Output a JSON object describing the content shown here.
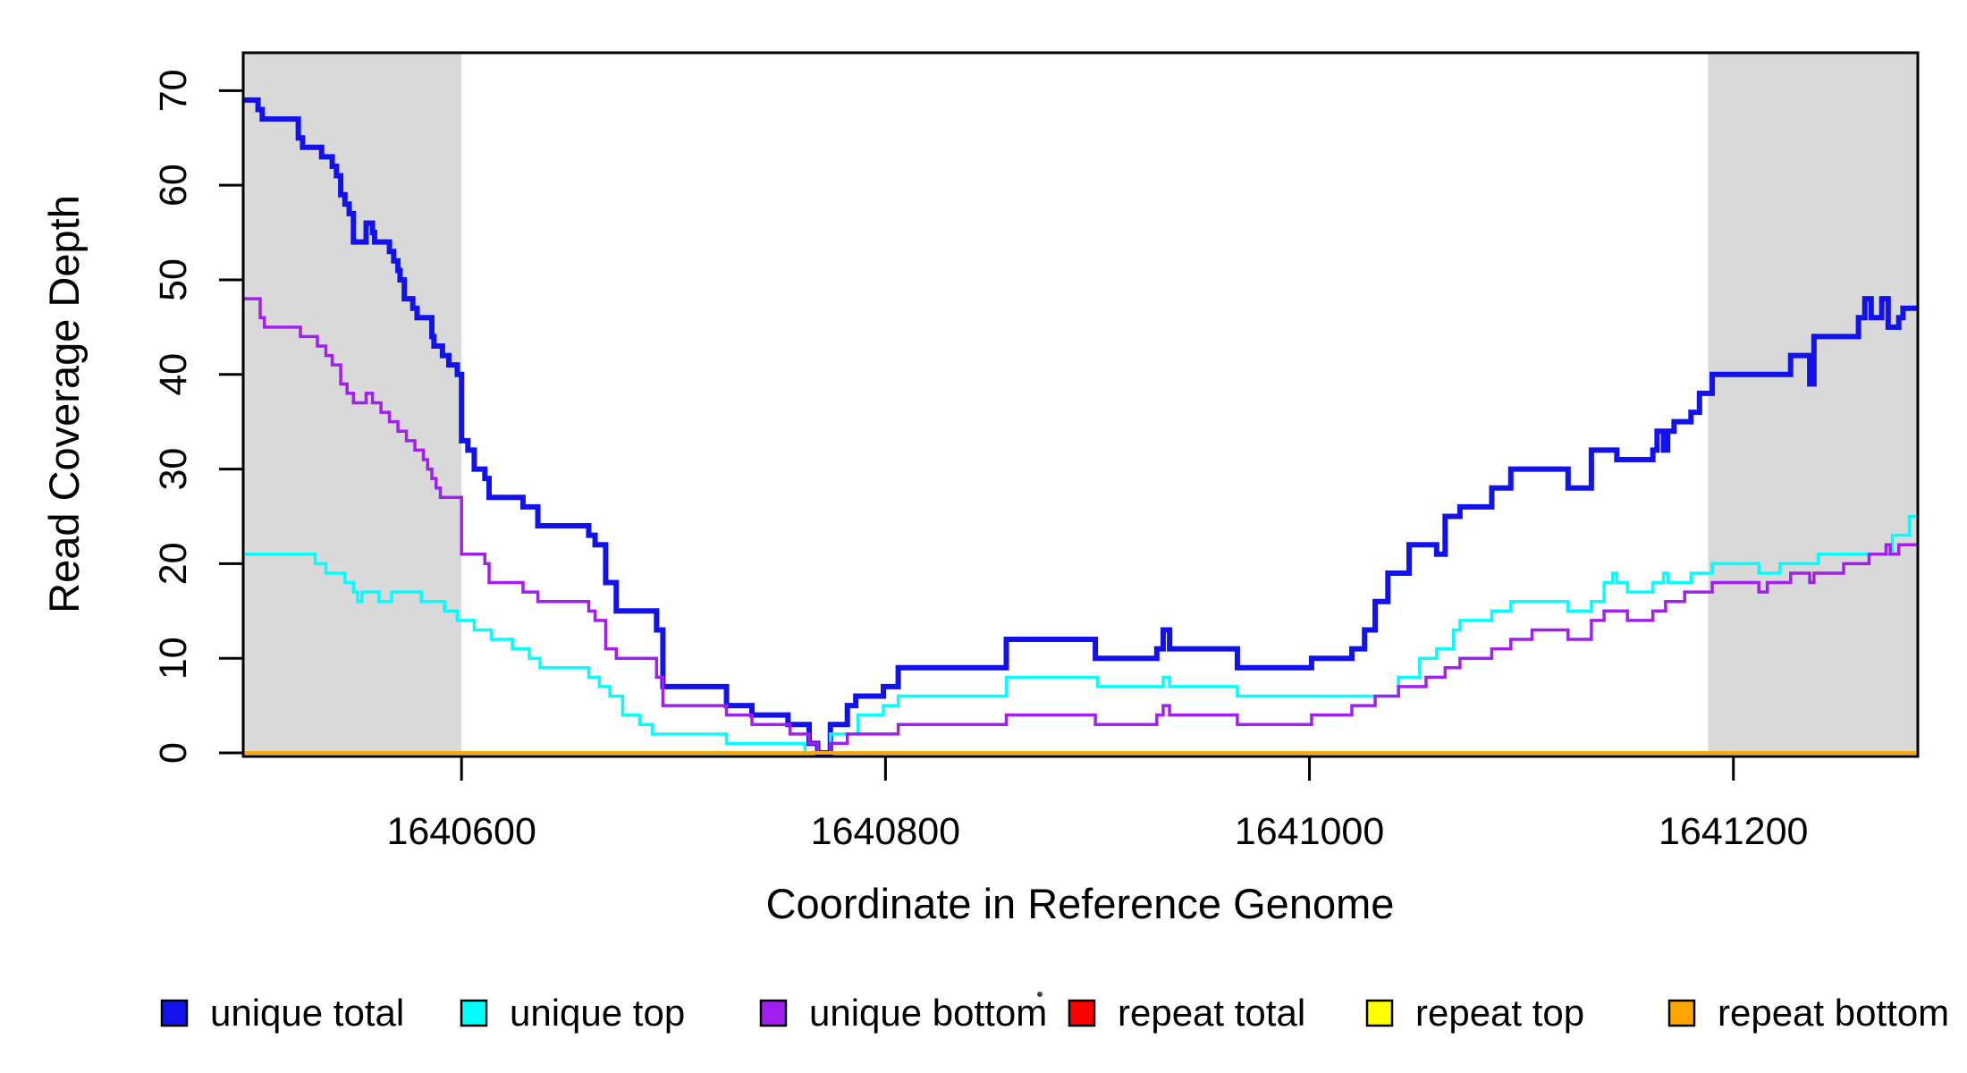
{
  "chart_data": {
    "type": "line",
    "step": true,
    "title": "",
    "xlabel": "Coordinate in Reference Genome",
    "ylabel": "Read Coverage Depth",
    "x_ticks": [
      1640600,
      1640800,
      1641000,
      1641200
    ],
    "y_ticks": [
      0,
      10,
      20,
      30,
      40,
      50,
      60,
      70
    ],
    "xlim": [
      1640497,
      1641287
    ],
    "ylim": [
      0,
      74
    ],
    "grid": false,
    "legend_position": "bottom",
    "shade_color": "#D9D9D9",
    "shaded_regions": [
      {
        "x0": 1640497,
        "x1": 1640600
      },
      {
        "x0": 1641188,
        "x1": 1641287
      }
    ],
    "series": [
      {
        "name": "unique total",
        "color": "#1212EE",
        "width": 6,
        "points": [
          [
            1640497,
            69
          ],
          [
            1640504,
            68
          ],
          [
            1640506,
            67
          ],
          [
            1640523,
            65
          ],
          [
            1640525,
            64
          ],
          [
            1640534,
            63
          ],
          [
            1640539,
            62
          ],
          [
            1640541,
            61
          ],
          [
            1640543,
            59
          ],
          [
            1640545,
            58
          ],
          [
            1640547,
            57
          ],
          [
            1640549,
            54
          ],
          [
            1640555,
            56
          ],
          [
            1640558,
            55
          ],
          [
            1640559,
            54
          ],
          [
            1640566,
            53
          ],
          [
            1640568,
            52
          ],
          [
            1640570,
            51
          ],
          [
            1640571,
            50
          ],
          [
            1640573,
            48
          ],
          [
            1640577,
            47
          ],
          [
            1640579,
            46
          ],
          [
            1640586,
            44
          ],
          [
            1640587,
            43
          ],
          [
            1640591,
            42
          ],
          [
            1640594,
            41
          ],
          [
            1640598,
            40
          ],
          [
            1640600,
            33
          ],
          [
            1640603,
            32
          ],
          [
            1640606,
            30
          ],
          [
            1640611,
            29
          ],
          [
            1640613,
            27
          ],
          [
            1640629,
            26
          ],
          [
            1640636,
            24
          ],
          [
            1640660,
            23
          ],
          [
            1640663,
            22
          ],
          [
            1640668,
            18
          ],
          [
            1640673,
            15
          ],
          [
            1640692,
            13
          ],
          [
            1640695,
            7
          ],
          [
            1640725,
            5
          ],
          [
            1640737,
            4
          ],
          [
            1640754,
            3
          ],
          [
            1640764,
            1
          ],
          [
            1640768,
            0
          ],
          [
            1640774,
            3
          ],
          [
            1640782,
            5
          ],
          [
            1640786,
            6
          ],
          [
            1640799,
            7
          ],
          [
            1640806,
            9
          ],
          [
            1640857,
            12
          ],
          [
            1640899,
            10
          ],
          [
            1640928,
            11
          ],
          [
            1640931,
            13
          ],
          [
            1640934,
            11
          ],
          [
            1640966,
            9
          ],
          [
            1641001,
            10
          ],
          [
            1641020,
            11
          ],
          [
            1641026,
            13
          ],
          [
            1641031,
            16
          ],
          [
            1641037,
            19
          ],
          [
            1641047,
            22
          ],
          [
            1641060,
            21
          ],
          [
            1641064,
            25
          ],
          [
            1641071,
            26
          ],
          [
            1641086,
            28
          ],
          [
            1641095,
            30
          ],
          [
            1641122,
            28
          ],
          [
            1641133,
            32
          ],
          [
            1641145,
            31
          ],
          [
            1641162,
            32
          ],
          [
            1641164,
            34
          ],
          [
            1641167,
            32
          ],
          [
            1641169,
            34
          ],
          [
            1641172,
            35
          ],
          [
            1641180,
            36
          ],
          [
            1641184,
            38
          ],
          [
            1641190,
            40
          ],
          [
            1641227,
            42
          ],
          [
            1641236,
            39
          ],
          [
            1641238,
            44
          ],
          [
            1641259,
            46
          ],
          [
            1641262,
            48
          ],
          [
            1641265,
            46
          ],
          [
            1641270,
            48
          ],
          [
            1641273,
            45
          ],
          [
            1641278,
            46
          ],
          [
            1641280,
            47
          ]
        ]
      },
      {
        "name": "unique top",
        "color": "#00FFFF",
        "width": 3.5,
        "points": [
          [
            1640497,
            21
          ],
          [
            1640531,
            20
          ],
          [
            1640536,
            19
          ],
          [
            1640545,
            18
          ],
          [
            1640549,
            17
          ],
          [
            1640551,
            16
          ],
          [
            1640553,
            17
          ],
          [
            1640561,
            16
          ],
          [
            1640567,
            17
          ],
          [
            1640581,
            16
          ],
          [
            1640592,
            15
          ],
          [
            1640598,
            14
          ],
          [
            1640606,
            13
          ],
          [
            1640614,
            12
          ],
          [
            1640624,
            11
          ],
          [
            1640632,
            10
          ],
          [
            1640637,
            9
          ],
          [
            1640660,
            8
          ],
          [
            1640665,
            7
          ],
          [
            1640670,
            6
          ],
          [
            1640676,
            4
          ],
          [
            1640684,
            3
          ],
          [
            1640690,
            2
          ],
          [
            1640725,
            1
          ],
          [
            1640762,
            0
          ],
          [
            1640774,
            2
          ],
          [
            1640787,
            4
          ],
          [
            1640799,
            5
          ],
          [
            1640806,
            6
          ],
          [
            1640857,
            8
          ],
          [
            1640900,
            7
          ],
          [
            1640931,
            8
          ],
          [
            1640934,
            7
          ],
          [
            1640966,
            6
          ],
          [
            1641042,
            8
          ],
          [
            1641052,
            10
          ],
          [
            1641060,
            11
          ],
          [
            1641068,
            13
          ],
          [
            1641071,
            14
          ],
          [
            1641086,
            15
          ],
          [
            1641095,
            16
          ],
          [
            1641122,
            15
          ],
          [
            1641133,
            16
          ],
          [
            1641139,
            18
          ],
          [
            1641143,
            19
          ],
          [
            1641145,
            18
          ],
          [
            1641150,
            17
          ],
          [
            1641162,
            18
          ],
          [
            1641167,
            19
          ],
          [
            1641169,
            18
          ],
          [
            1641180,
            19
          ],
          [
            1641190,
            20
          ],
          [
            1641212,
            19
          ],
          [
            1641222,
            20
          ],
          [
            1641240,
            21
          ],
          [
            1641275,
            23
          ],
          [
            1641283,
            25
          ]
        ]
      },
      {
        "name": "unique bottom",
        "color": "#A020F0",
        "width": 3.5,
        "points": [
          [
            1640497,
            48
          ],
          [
            1640505,
            46
          ],
          [
            1640507,
            45
          ],
          [
            1640524,
            44
          ],
          [
            1640532,
            43
          ],
          [
            1640536,
            42
          ],
          [
            1640539,
            41
          ],
          [
            1640543,
            39
          ],
          [
            1640546,
            38
          ],
          [
            1640549,
            37
          ],
          [
            1640555,
            38
          ],
          [
            1640558,
            37
          ],
          [
            1640562,
            36
          ],
          [
            1640566,
            35
          ],
          [
            1640570,
            34
          ],
          [
            1640574,
            33
          ],
          [
            1640578,
            32
          ],
          [
            1640582,
            31
          ],
          [
            1640584,
            30
          ],
          [
            1640586,
            29
          ],
          [
            1640588,
            28
          ],
          [
            1640590,
            27
          ],
          [
            1640600,
            21
          ],
          [
            1640611,
            20
          ],
          [
            1640613,
            18
          ],
          [
            1640629,
            17
          ],
          [
            1640636,
            16
          ],
          [
            1640660,
            15
          ],
          [
            1640663,
            14
          ],
          [
            1640668,
            11
          ],
          [
            1640673,
            10
          ],
          [
            1640692,
            8
          ],
          [
            1640695,
            5
          ],
          [
            1640725,
            4
          ],
          [
            1640737,
            3
          ],
          [
            1640755,
            2
          ],
          [
            1640764,
            1
          ],
          [
            1640768,
            0
          ],
          [
            1640774,
            1
          ],
          [
            1640782,
            2
          ],
          [
            1640806,
            3
          ],
          [
            1640857,
            4
          ],
          [
            1640899,
            3
          ],
          [
            1640928,
            4
          ],
          [
            1640931,
            5
          ],
          [
            1640934,
            4
          ],
          [
            1640966,
            3
          ],
          [
            1641001,
            4
          ],
          [
            1641020,
            5
          ],
          [
            1641031,
            6
          ],
          [
            1641042,
            7
          ],
          [
            1641055,
            8
          ],
          [
            1641064,
            9
          ],
          [
            1641071,
            10
          ],
          [
            1641086,
            11
          ],
          [
            1641095,
            12
          ],
          [
            1641105,
            13
          ],
          [
            1641122,
            12
          ],
          [
            1641133,
            14
          ],
          [
            1641139,
            15
          ],
          [
            1641150,
            14
          ],
          [
            1641162,
            15
          ],
          [
            1641168,
            16
          ],
          [
            1641177,
            17
          ],
          [
            1641190,
            18
          ],
          [
            1641212,
            17
          ],
          [
            1641216,
            18
          ],
          [
            1641227,
            19
          ],
          [
            1641236,
            18
          ],
          [
            1641238,
            19
          ],
          [
            1641252,
            20
          ],
          [
            1641264,
            21
          ],
          [
            1641272,
            22
          ],
          [
            1641274,
            21
          ],
          [
            1641278,
            22
          ]
        ]
      },
      {
        "name": "repeat total",
        "color": "#FF0000",
        "width": 3.5,
        "points": [
          [
            1640497,
            0
          ]
        ]
      },
      {
        "name": "repeat top",
        "color": "#FFFF00",
        "width": 3.5,
        "points": [
          [
            1640497,
            0
          ]
        ]
      },
      {
        "name": "repeat bottom",
        "color": "#FFA500",
        "width": 3.5,
        "points": [
          [
            1640497,
            0
          ]
        ]
      }
    ]
  },
  "legend": {
    "items": [
      {
        "label": "unique total",
        "color": "#1212EE"
      },
      {
        "label": "unique top",
        "color": "#00FFFF"
      },
      {
        "label": "unique bottom",
        "color": "#A020F0"
      },
      {
        "label": "repeat total",
        "color": "#FF0000"
      },
      {
        "label": "repeat top",
        "color": "#FFFF00"
      },
      {
        "label": "repeat bottom",
        "color": "#FFA500"
      }
    ]
  }
}
